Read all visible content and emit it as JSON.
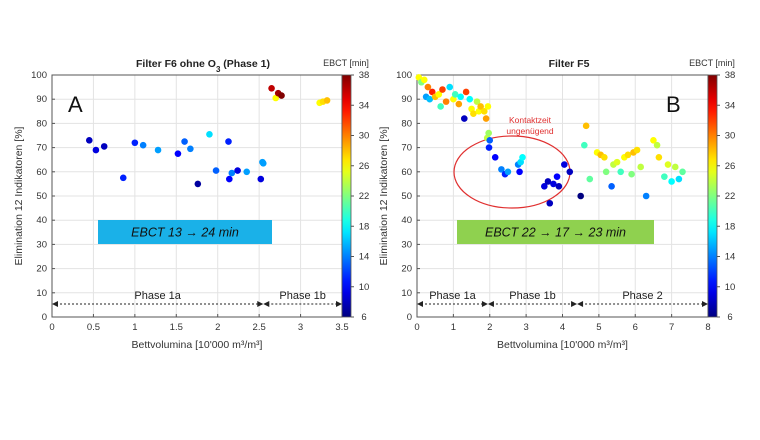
{
  "charts": [
    {
      "title_html": "Filter F6 ohne O<tspan baseline-shift=\"sub\" font-size=\"8\">3</tspan> (Phase 1)",
      "title": "Filter F6 ohne O3 (Phase 1)",
      "panel_letter": "A",
      "xlabel": "Bettvolumina [10'000 m³/m³]",
      "ylabel": "Elimination 12 Indikatoren [%]",
      "xticks": [
        "0",
        "0.5",
        "1",
        "1.5",
        "2",
        "2.5",
        "3",
        "3.5"
      ],
      "yticks": [
        "0",
        "10",
        "20",
        "30",
        "40",
        "50",
        "60",
        "70",
        "80",
        "90",
        "100"
      ],
      "colorbar_title": "EBCT [min]",
      "colorbar_ticks": [
        "6",
        "10",
        "14",
        "18",
        "22",
        "26",
        "30",
        "34",
        "38"
      ],
      "label_box": {
        "text": "EBCT 13 → 24 min",
        "color": "#1ab1e8"
      },
      "phases": [
        {
          "label": "Phase 1a",
          "from": 0,
          "to": 2.55
        },
        {
          "label": "Phase 1b",
          "from": 2.55,
          "to": 3.5
        }
      ]
    },
    {
      "title": "Filter F5",
      "panel_letter": "B",
      "xlabel": "Bettvolumina [10'000 m³/m³]",
      "ylabel": "Elimination 12 Indikatoren [%]",
      "xticks": [
        "0",
        "1",
        "2",
        "3",
        "4",
        "5",
        "6",
        "7",
        "8"
      ],
      "yticks": [
        "0",
        "10",
        "20",
        "30",
        "40",
        "50",
        "60",
        "70",
        "80",
        "90",
        "100"
      ],
      "colorbar_title": "EBCT [min]",
      "colorbar_ticks": [
        "6",
        "10",
        "14",
        "18",
        "22",
        "26",
        "30",
        "34",
        "38"
      ],
      "label_box": {
        "text": "EBCT 22 → 17 → 23 min",
        "color": "#8fd14f"
      },
      "annotation": [
        "Kontaktzeit",
        "ungenügend"
      ],
      "phases": [
        {
          "label": "Phase 1a",
          "from": 0,
          "to": 1.95
        },
        {
          "label": "Phase 1b",
          "from": 1.95,
          "to": 4.4
        },
        {
          "label": "Phase 2",
          "from": 4.4,
          "to": 8
        }
      ]
    }
  ],
  "chart_data": [
    {
      "type": "scatter",
      "title": "Filter F6 ohne O3 (Phase 1)",
      "xlabel": "Bettvolumina [10'000 m³/m³]",
      "ylabel": "Elimination 12 Indikatoren [%]",
      "xlim": [
        0,
        3.5
      ],
      "ylim": [
        0,
        100
      ],
      "color_variable": "EBCT [min]",
      "clim": [
        6,
        38
      ],
      "grid": true,
      "colorbar": "right",
      "points": [
        {
          "x": 0.45,
          "y": 73,
          "c": 8
        },
        {
          "x": 0.53,
          "y": 69,
          "c": 9
        },
        {
          "x": 0.63,
          "y": 70.5,
          "c": 8
        },
        {
          "x": 0.86,
          "y": 57.5,
          "c": 11
        },
        {
          "x": 1.0,
          "y": 72,
          "c": 11
        },
        {
          "x": 1.1,
          "y": 71,
          "c": 14
        },
        {
          "x": 1.28,
          "y": 69,
          "c": 15
        },
        {
          "x": 1.52,
          "y": 67.5,
          "c": 10
        },
        {
          "x": 1.6,
          "y": 72.5,
          "c": 13
        },
        {
          "x": 1.67,
          "y": 69.5,
          "c": 14
        },
        {
          "x": 1.76,
          "y": 55,
          "c": 7
        },
        {
          "x": 1.9,
          "y": 75.5,
          "c": 17
        },
        {
          "x": 1.98,
          "y": 60.5,
          "c": 13
        },
        {
          "x": 2.13,
          "y": 72.5,
          "c": 11
        },
        {
          "x": 2.14,
          "y": 57,
          "c": 10
        },
        {
          "x": 2.17,
          "y": 59.5,
          "c": 14
        },
        {
          "x": 2.24,
          "y": 60.5,
          "c": 9
        },
        {
          "x": 2.35,
          "y": 60,
          "c": 15
        },
        {
          "x": 2.52,
          "y": 57,
          "c": 9
        },
        {
          "x": 2.54,
          "y": 64,
          "c": 15
        },
        {
          "x": 2.55,
          "y": 63.5,
          "c": 15
        },
        {
          "x": 2.65,
          "y": 94.5,
          "c": 36
        },
        {
          "x": 2.7,
          "y": 90.5,
          "c": 26
        },
        {
          "x": 2.73,
          "y": 92.5,
          "c": 37
        },
        {
          "x": 2.77,
          "y": 91.5,
          "c": 38
        },
        {
          "x": 3.23,
          "y": 88.5,
          "c": 26
        },
        {
          "x": 3.27,
          "y": 89,
          "c": 27
        },
        {
          "x": 3.32,
          "y": 89.5,
          "c": 28
        }
      ]
    },
    {
      "type": "scatter",
      "title": "Filter F5",
      "xlabel": "Bettvolumina [10'000 m³/m³]",
      "ylabel": "Elimination 12 Indikatoren [%]",
      "xlim": [
        0,
        8
      ],
      "ylim": [
        0,
        100
      ],
      "color_variable": "EBCT [min]",
      "clim": [
        6,
        38
      ],
      "grid": true,
      "colorbar": "right",
      "points": [
        {
          "x": 0.05,
          "y": 99,
          "c": 26
        },
        {
          "x": 0.12,
          "y": 97,
          "c": 22
        },
        {
          "x": 0.2,
          "y": 98,
          "c": 26
        },
        {
          "x": 0.25,
          "y": 91,
          "c": 15
        },
        {
          "x": 0.3,
          "y": 95,
          "c": 30
        },
        {
          "x": 0.35,
          "y": 90,
          "c": 16
        },
        {
          "x": 0.42,
          "y": 93,
          "c": 33
        },
        {
          "x": 0.5,
          "y": 91,
          "c": 28
        },
        {
          "x": 0.6,
          "y": 92,
          "c": 26
        },
        {
          "x": 0.65,
          "y": 87,
          "c": 20
        },
        {
          "x": 0.7,
          "y": 94,
          "c": 32
        },
        {
          "x": 0.8,
          "y": 89,
          "c": 30
        },
        {
          "x": 0.9,
          "y": 95,
          "c": 17
        },
        {
          "x": 1.0,
          "y": 90,
          "c": 26
        },
        {
          "x": 1.05,
          "y": 92,
          "c": 20
        },
        {
          "x": 1.15,
          "y": 88,
          "c": 29
        },
        {
          "x": 1.2,
          "y": 91,
          "c": 18
        },
        {
          "x": 1.3,
          "y": 82,
          "c": 8
        },
        {
          "x": 1.35,
          "y": 93,
          "c": 32
        },
        {
          "x": 1.45,
          "y": 90,
          "c": 18
        },
        {
          "x": 1.5,
          "y": 86,
          "c": 26
        },
        {
          "x": 1.55,
          "y": 84,
          "c": 27
        },
        {
          "x": 1.65,
          "y": 89,
          "c": 24
        },
        {
          "x": 1.7,
          "y": 85,
          "c": 26
        },
        {
          "x": 1.75,
          "y": 87,
          "c": 28
        },
        {
          "x": 1.85,
          "y": 85,
          "c": 27
        },
        {
          "x": 1.9,
          "y": 82,
          "c": 29
        },
        {
          "x": 1.95,
          "y": 87,
          "c": 26
        },
        {
          "x": 1.93,
          "y": 74,
          "c": 24
        },
        {
          "x": 1.97,
          "y": 76,
          "c": 23
        },
        {
          "x": 2.0,
          "y": 73,
          "c": 13
        },
        {
          "x": 1.98,
          "y": 70,
          "c": 11
        },
        {
          "x": 2.15,
          "y": 66,
          "c": 10
        },
        {
          "x": 2.32,
          "y": 61,
          "c": 14
        },
        {
          "x": 2.42,
          "y": 59,
          "c": 11
        },
        {
          "x": 2.5,
          "y": 60,
          "c": 15
        },
        {
          "x": 2.78,
          "y": 63,
          "c": 14
        },
        {
          "x": 2.85,
          "y": 64,
          "c": 17
        },
        {
          "x": 2.9,
          "y": 66,
          "c": 18
        },
        {
          "x": 2.82,
          "y": 60,
          "c": 10
        },
        {
          "x": 3.5,
          "y": 54,
          "c": 9
        },
        {
          "x": 3.6,
          "y": 56,
          "c": 8
        },
        {
          "x": 3.65,
          "y": 47,
          "c": 8
        },
        {
          "x": 3.75,
          "y": 55,
          "c": 9
        },
        {
          "x": 3.85,
          "y": 58,
          "c": 10
        },
        {
          "x": 3.9,
          "y": 54,
          "c": 8
        },
        {
          "x": 4.05,
          "y": 63,
          "c": 9
        },
        {
          "x": 4.2,
          "y": 60,
          "c": 8
        },
        {
          "x": 4.5,
          "y": 50,
          "c": 6
        },
        {
          "x": 4.65,
          "y": 79,
          "c": 28
        },
        {
          "x": 4.6,
          "y": 71,
          "c": 20
        },
        {
          "x": 4.75,
          "y": 57,
          "c": 21
        },
        {
          "x": 4.95,
          "y": 68,
          "c": 26
        },
        {
          "x": 5.05,
          "y": 67,
          "c": 28
        },
        {
          "x": 5.15,
          "y": 66,
          "c": 27
        },
        {
          "x": 5.2,
          "y": 60,
          "c": 22
        },
        {
          "x": 5.35,
          "y": 54,
          "c": 13
        },
        {
          "x": 5.4,
          "y": 63,
          "c": 24
        },
        {
          "x": 5.5,
          "y": 64,
          "c": 25
        },
        {
          "x": 5.6,
          "y": 60,
          "c": 20
        },
        {
          "x": 5.7,
          "y": 66,
          "c": 26
        },
        {
          "x": 5.8,
          "y": 67,
          "c": 27
        },
        {
          "x": 5.9,
          "y": 59,
          "c": 22
        },
        {
          "x": 5.95,
          "y": 68,
          "c": 28
        },
        {
          "x": 6.05,
          "y": 69,
          "c": 27
        },
        {
          "x": 6.15,
          "y": 62,
          "c": 24
        },
        {
          "x": 6.3,
          "y": 50,
          "c": 14
        },
        {
          "x": 6.5,
          "y": 73,
          "c": 26
        },
        {
          "x": 6.6,
          "y": 71,
          "c": 24
        },
        {
          "x": 6.65,
          "y": 66,
          "c": 27
        },
        {
          "x": 6.8,
          "y": 58,
          "c": 20
        },
        {
          "x": 6.9,
          "y": 63,
          "c": 25
        },
        {
          "x": 7.0,
          "y": 56,
          "c": 18
        },
        {
          "x": 7.1,
          "y": 62,
          "c": 24
        },
        {
          "x": 7.2,
          "y": 57,
          "c": 17
        },
        {
          "x": 7.3,
          "y": 60,
          "c": 21
        }
      ]
    }
  ]
}
